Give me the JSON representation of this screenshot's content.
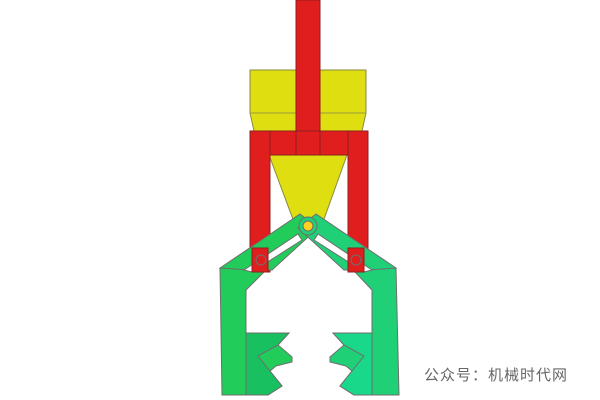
{
  "watermark": {
    "text": "公众号：机械时代网"
  },
  "colors": {
    "rod": "#e01e1e",
    "housing": "#dede10",
    "jaw_left": "#22cc5a",
    "jaw_right": "#1fd077",
    "pivot": "#ffd21e",
    "outline": "#6e6e6e"
  },
  "parts": [
    "push-rod",
    "upper-housing",
    "guide-cone",
    "red-yoke",
    "left-gripper-jaw",
    "right-gripper-jaw",
    "left-link-arm",
    "right-link-arm",
    "central-pivot",
    "left-side-pin",
    "right-side-pin"
  ]
}
